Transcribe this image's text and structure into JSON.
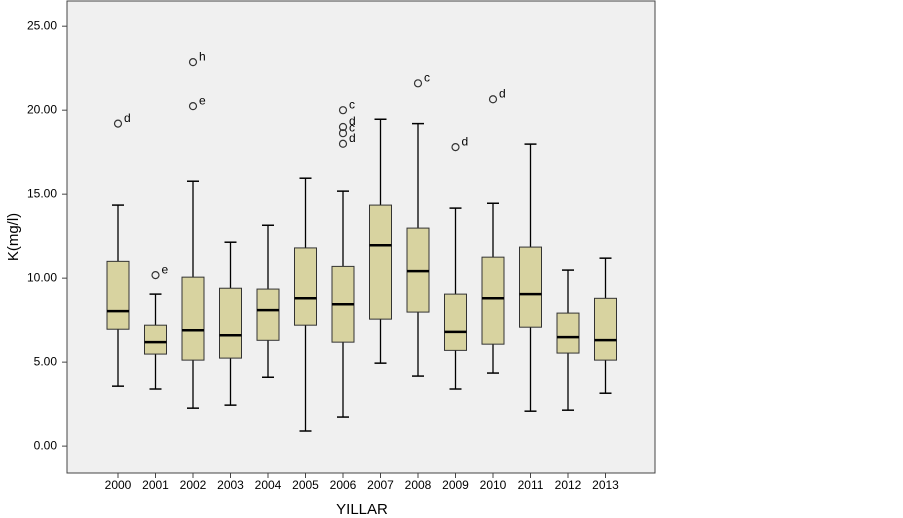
{
  "chart_data": {
    "type": "box",
    "y_label": "K(mg/l)",
    "x_label": "YILLAR",
    "categories": [
      "2000",
      "2001",
      "2002",
      "2003",
      "2004",
      "2005",
      "2006",
      "2007",
      "2008",
      "2009",
      "2010",
      "2011",
      "2012",
      "2013"
    ],
    "boxes": [
      {
        "low": 3.57,
        "q1": 6.96,
        "median": 8.04,
        "q3": 11.0,
        "high": 14.35,
        "outliers": [
          {
            "value": 19.2,
            "label": "d"
          }
        ]
      },
      {
        "low": 3.4,
        "q1": 5.48,
        "median": 6.19,
        "q3": 7.2,
        "high": 9.05,
        "outliers": [
          {
            "value": 10.18,
            "label": "e"
          }
        ]
      },
      {
        "low": 2.26,
        "q1": 5.12,
        "median": 6.9,
        "q3": 10.06,
        "high": 15.77,
        "outliers": [
          {
            "value": 20.24,
            "label": "e"
          },
          {
            "value": 22.86,
            "label": "h"
          }
        ]
      },
      {
        "low": 2.44,
        "q1": 5.24,
        "median": 6.6,
        "q3": 9.4,
        "high": 12.14,
        "outliers": []
      },
      {
        "low": 4.1,
        "q1": 6.3,
        "median": 8.1,
        "q3": 9.35,
        "high": 13.15,
        "outliers": []
      },
      {
        "low": 0.9,
        "q1": 7.2,
        "median": 8.8,
        "q3": 11.8,
        "high": 15.95,
        "outliers": []
      },
      {
        "low": 1.73,
        "q1": 6.19,
        "median": 8.45,
        "q3": 10.7,
        "high": 15.18,
        "outliers": [
          {
            "value": 20.0,
            "label": "c"
          },
          {
            "value": 19.0,
            "label": "d"
          },
          {
            "value": 18.63,
            "label": "c"
          },
          {
            "value": 18.0,
            "label": "d"
          }
        ]
      },
      {
        "low": 4.94,
        "q1": 7.56,
        "median": 11.96,
        "q3": 14.35,
        "high": 19.46,
        "outliers": []
      },
      {
        "low": 4.17,
        "q1": 7.98,
        "median": 10.42,
        "q3": 12.98,
        "high": 19.2,
        "outliers": [
          {
            "value": 21.6,
            "label": "c"
          }
        ]
      },
      {
        "low": 3.4,
        "q1": 5.7,
        "median": 6.8,
        "q3": 9.05,
        "high": 14.17,
        "outliers": [
          {
            "value": 17.8,
            "label": "d"
          }
        ]
      },
      {
        "low": 4.35,
        "q1": 6.07,
        "median": 8.8,
        "q3": 11.25,
        "high": 14.46,
        "outliers": [
          {
            "value": 20.65,
            "label": "d"
          }
        ]
      },
      {
        "low": 2.08,
        "q1": 7.08,
        "median": 9.05,
        "q3": 11.85,
        "high": 17.98,
        "outliers": []
      },
      {
        "low": 2.14,
        "q1": 5.54,
        "median": 6.49,
        "q3": 7.92,
        "high": 10.48,
        "outliers": []
      },
      {
        "low": 3.15,
        "q1": 5.12,
        "median": 6.31,
        "q3": 8.8,
        "high": 11.19,
        "outliers": []
      }
    ],
    "color": "#d8d3a0",
    "ylim": [
      -1.6,
      26.5
    ],
    "yticks": [
      {
        "value": 0,
        "label": "0.00"
      },
      {
        "value": 5,
        "label": "5.00"
      },
      {
        "value": 10,
        "label": "10.00"
      },
      {
        "value": 15,
        "label": "15.00"
      },
      {
        "value": 20,
        "label": "20.00"
      },
      {
        "value": 25,
        "label": "25.00"
      }
    ]
  }
}
